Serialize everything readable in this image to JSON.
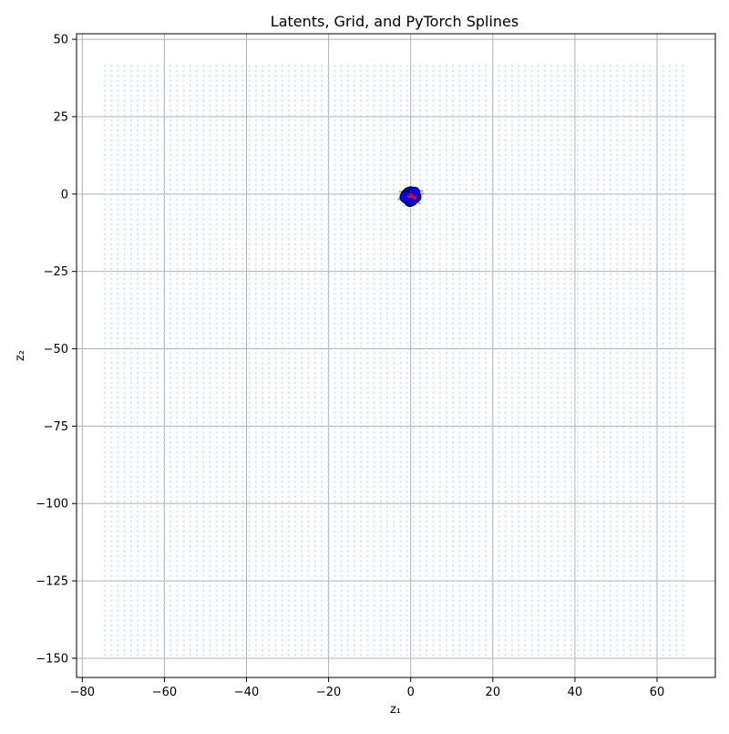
{
  "chart_data": {
    "type": "scatter",
    "title": "Latents, Grid, and PyTorch Splines",
    "xlabel": "z₁",
    "ylabel": "z₂",
    "xlim": [
      -81.4,
      74.2
    ],
    "ylim": [
      -156.2,
      51.8
    ],
    "xticks": [
      -80,
      -60,
      -40,
      -20,
      0,
      20,
      40,
      60
    ],
    "yticks": [
      -150,
      -125,
      -100,
      -75,
      -50,
      -25,
      0,
      25,
      50
    ],
    "xtick_labels": [
      "−80",
      "−60",
      "−40",
      "−20",
      "0",
      "20",
      "40",
      "60"
    ],
    "ytick_labels": [
      "−150",
      "−125",
      "−100",
      "−75",
      "−50",
      "−25",
      "0",
      "25",
      "50"
    ],
    "grid": true,
    "legend": "none",
    "grid_points": {
      "x_range": [
        -74.5,
        67.5
      ],
      "y_range": [
        -149,
        42
      ],
      "step": 1.6,
      "color": "#a9d9e3"
    },
    "latents": {
      "color": "#0000ff",
      "edge_color": "#000000",
      "points": [
        [
          -1.0,
          -0.2
        ],
        [
          -0.5,
          0.4
        ],
        [
          0.0,
          0.6
        ],
        [
          0.6,
          0.3
        ],
        [
          1.0,
          -0.4
        ],
        [
          0.8,
          -1.2
        ],
        [
          0.2,
          -1.7
        ],
        [
          -0.4,
          -1.9
        ],
        [
          -0.9,
          -1.3
        ],
        [
          -1.1,
          -0.7
        ],
        [
          -0.3,
          -0.6
        ],
        [
          0.4,
          -0.8
        ],
        [
          0.0,
          -1.1
        ],
        [
          -0.6,
          -1.1
        ],
        [
          0.5,
          0.1
        ],
        [
          1.2,
          -0.9
        ],
        [
          -0.2,
          -2.3
        ],
        [
          0.3,
          -2.0
        ],
        [
          -1.3,
          -1.0
        ],
        [
          0.9,
          0.5
        ]
      ]
    },
    "splines": {
      "color": "#ff0000",
      "curves": [
        [
          [
            -0.8,
            -0.5
          ],
          [
            -0.3,
            -0.9
          ],
          [
            0.2,
            -1.1
          ],
          [
            0.7,
            -1.0
          ],
          [
            1.2,
            -0.8
          ]
        ],
        [
          [
            -0.2,
            0.2
          ],
          [
            0.1,
            -0.3
          ],
          [
            0.4,
            -0.7
          ],
          [
            0.9,
            -1.3
          ],
          [
            1.4,
            -1.6
          ]
        ]
      ]
    },
    "tangents": {
      "color": "#a0a0a0",
      "segments": [
        [
          [
            -3.2,
            -1.8
          ],
          [
            -1.4,
            -1.0
          ]
        ],
        [
          [
            1.5,
            -0.4
          ],
          [
            3.2,
            0.2
          ]
        ],
        [
          [
            0.8,
            -2.2
          ],
          [
            2.4,
            -3.0
          ]
        ],
        [
          [
            -1.6,
            0.3
          ],
          [
            -2.8,
            0.9
          ]
        ],
        [
          [
            2.0,
            0.6
          ],
          [
            3.0,
            1.2
          ]
        ]
      ]
    }
  }
}
